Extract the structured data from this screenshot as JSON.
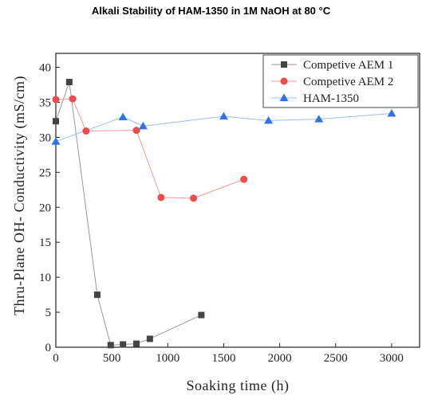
{
  "chart_data": {
    "type": "line",
    "title": "Alkali Stability of HAM-1350 in 1M NaOH at 80 °C",
    "xlabel": "Soaking time (h)",
    "ylabel": "Thru-Plane OH- Conductivity (mS/cm)",
    "xlim": [
      0,
      3250
    ],
    "ylim": [
      0,
      42
    ],
    "xticks": [
      0,
      500,
      1000,
      1500,
      2000,
      2500,
      3000
    ],
    "yticks": [
      0,
      5,
      10,
      15,
      20,
      25,
      30,
      35,
      40
    ],
    "grid": false,
    "legend_position": "top-right",
    "series": [
      {
        "name": "Competive AEM 1",
        "marker": "square",
        "color": "#444444",
        "line_color": "#999999",
        "x": [
          0,
          120,
          370,
          490,
          600,
          720,
          840,
          1300
        ],
        "y": [
          32.3,
          37.9,
          7.5,
          0.3,
          0.4,
          0.5,
          1.2,
          4.6
        ]
      },
      {
        "name": "Competive AEM 2",
        "marker": "circle",
        "color": "#f04a4a",
        "line_color": "#f29a9a",
        "x": [
          0,
          150,
          270,
          720,
          940,
          1230,
          1680
        ],
        "y": [
          35.4,
          35.5,
          30.9,
          31.0,
          21.4,
          21.3,
          24.0
        ]
      },
      {
        "name": "HAM-1350",
        "marker": "triangle",
        "color": "#2f74e0",
        "line_color": "#9bbcf0",
        "x": [
          0,
          600,
          780,
          1500,
          1900,
          2350,
          3000
        ],
        "y": [
          29.4,
          32.9,
          31.6,
          33.0,
          32.4,
          32.6,
          33.4
        ]
      }
    ]
  }
}
